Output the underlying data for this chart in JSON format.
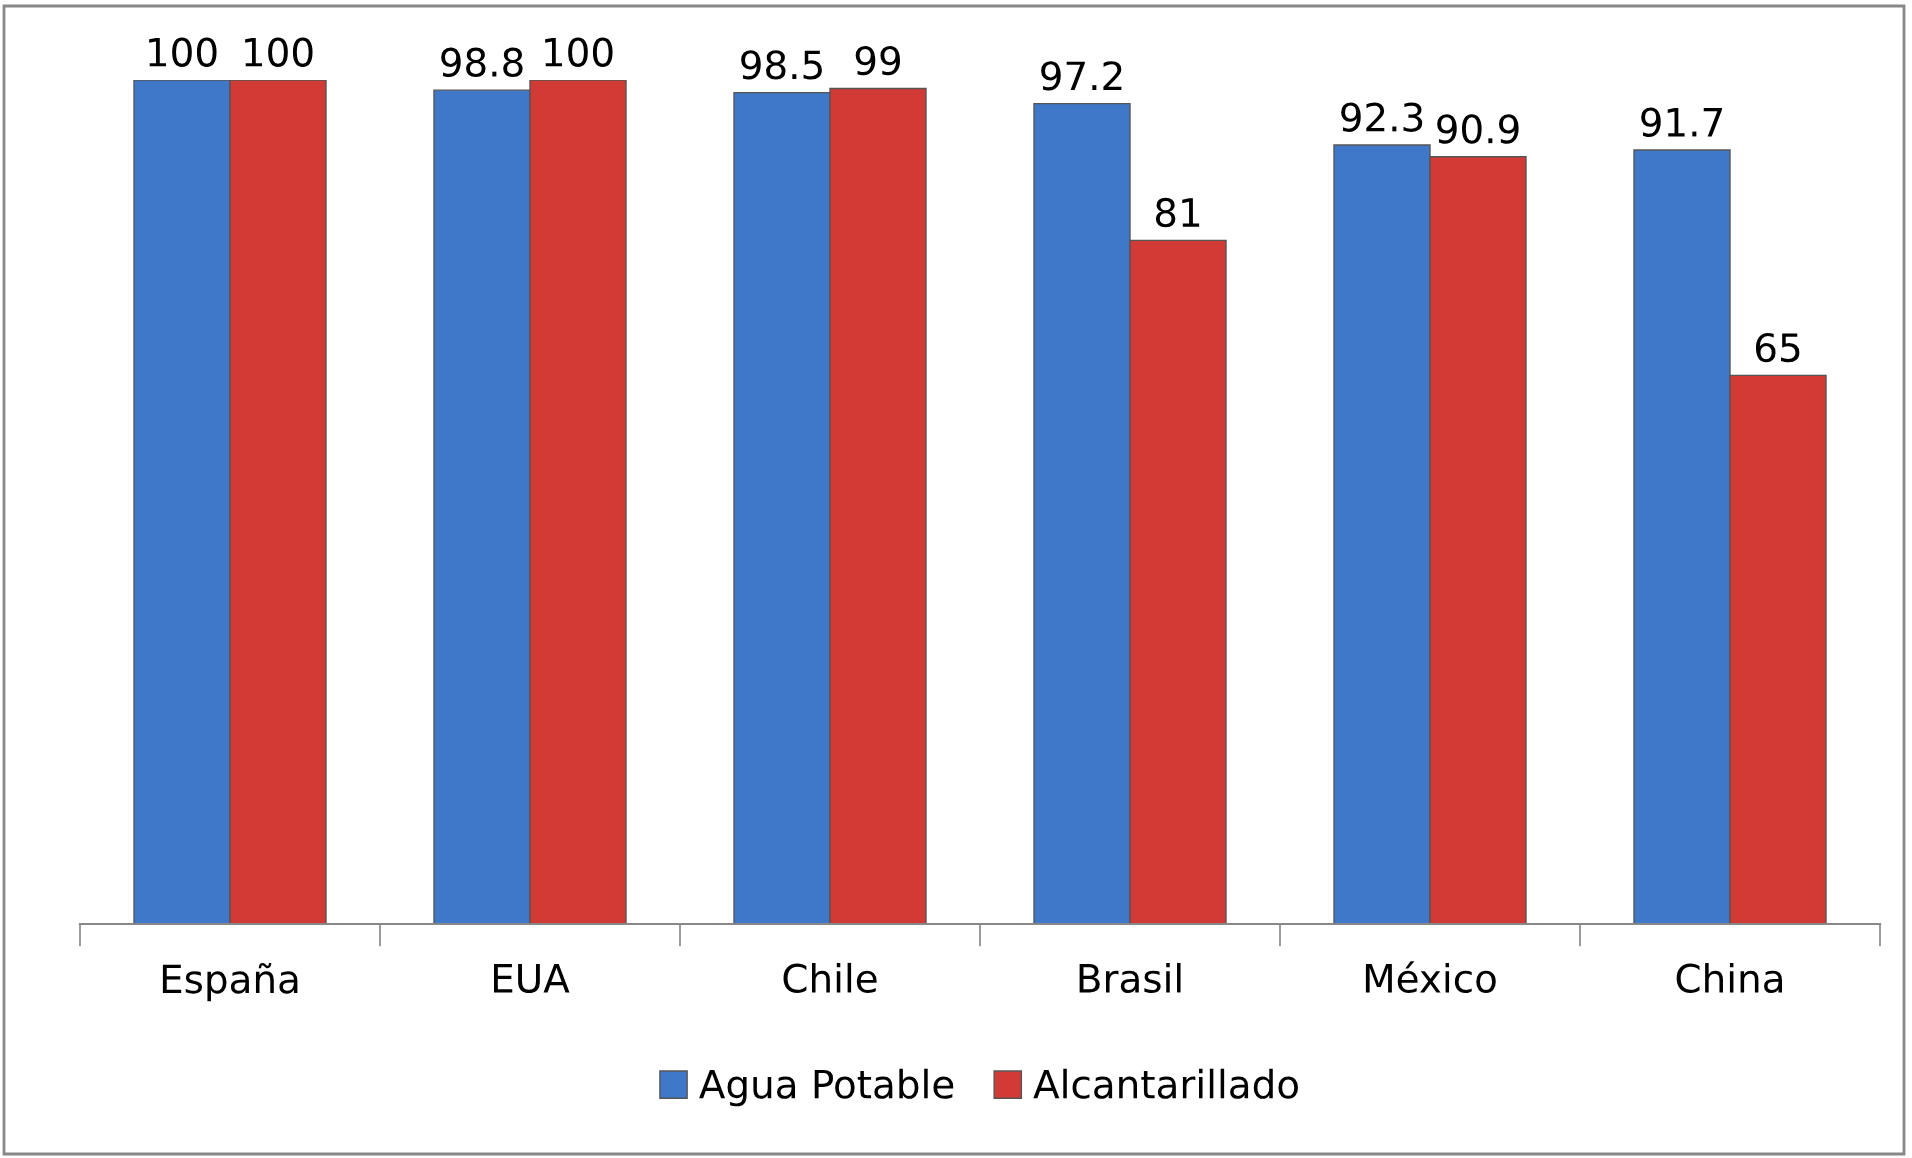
{
  "chart_data": {
    "type": "bar",
    "categories": [
      "España",
      "EUA",
      "Chile",
      "Brasil",
      "México",
      "China"
    ],
    "series": [
      {
        "name": "Agua Potable",
        "color": "#3f78c8",
        "values": [
          100,
          98.8,
          98.5,
          97.2,
          92.3,
          91.7
        ]
      },
      {
        "name": "Alcantarillado",
        "color": "#d23a36",
        "values": [
          100,
          100,
          99,
          81,
          90.9,
          65
        ]
      }
    ],
    "ylim": [
      0,
      100
    ],
    "data_labels": true,
    "legend": "bottom",
    "grid": false,
    "tick_labels": "x"
  }
}
